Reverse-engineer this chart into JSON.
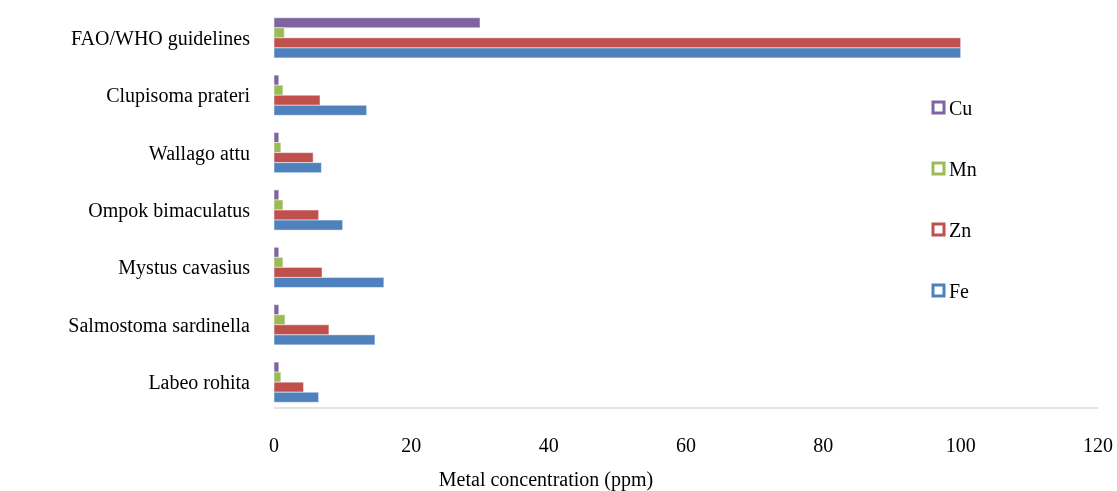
{
  "chart_data": {
    "type": "bar",
    "orientation": "horizontal",
    "xlabel": "Metal concentration (ppm)",
    "categories": [
      "FAO/WHO guidelines",
      "Clupisoma prateri",
      "Wallago attu",
      "Ompok bimaculatus",
      "Mystus cavasius",
      "Salmostoma sardinella",
      "Labeo rohita"
    ],
    "series": [
      {
        "name": "Cu",
        "color": "#8064a2",
        "values": [
          30,
          0.7,
          0.7,
          0.7,
          0.7,
          0.7,
          0.7
        ]
      },
      {
        "name": "Mn",
        "color": "#9bbb59",
        "values": [
          1.5,
          1.3,
          1.0,
          1.3,
          1.3,
          1.6,
          1.0
        ]
      },
      {
        "name": "Zn",
        "color": "#c0504d",
        "values": [
          100,
          6.7,
          5.7,
          6.5,
          7,
          8,
          4.3
        ]
      },
      {
        "name": "Fe",
        "color": "#4f81bd",
        "values": [
          100,
          13.5,
          6.9,
          10,
          16,
          14.7,
          6.5
        ]
      }
    ],
    "xlim": [
      0,
      120
    ],
    "xticks": [
      0,
      20,
      40,
      60,
      80,
      100,
      120
    ],
    "grid": false,
    "legend": "right"
  }
}
